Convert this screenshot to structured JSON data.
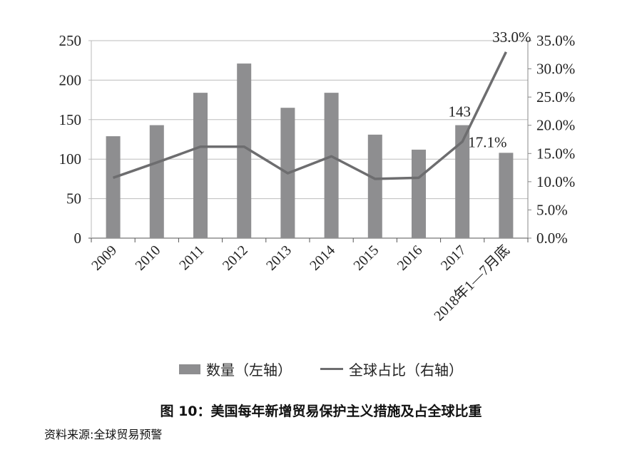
{
  "chart_data": {
    "type": "bar+line",
    "categories": [
      "2009",
      "2010",
      "2011",
      "2012",
      "2013",
      "2014",
      "2015",
      "2016",
      "2017",
      "2018年1—7月底"
    ],
    "series": [
      {
        "name": "数量（左轴）",
        "type": "bar",
        "axis": "left",
        "values": [
          129,
          143,
          184,
          221,
          165,
          184,
          131,
          112,
          143,
          108
        ],
        "color": "#8e8e90"
      },
      {
        "name": "全球占比（右轴）",
        "type": "line",
        "axis": "right",
        "values": [
          10.7,
          13.4,
          16.2,
          16.2,
          11.5,
          14.5,
          10.5,
          10.7,
          17.1,
          33.0
        ],
        "color": "#6d6d6f"
      }
    ],
    "left_axis": {
      "ylim": [
        0,
        250
      ],
      "ticks": [
        "0",
        "50",
        "100",
        "150",
        "200",
        "250"
      ]
    },
    "right_axis": {
      "ylim": [
        0,
        35
      ],
      "ticks": [
        "0.0%",
        "5.0%",
        "10.0%",
        "15.0%",
        "20.0%",
        "25.0%",
        "30.0%",
        "35.0%"
      ]
    },
    "annotations": [
      {
        "text": "143",
        "category": "2017",
        "series": "bar"
      },
      {
        "text": "17.1%",
        "category": "2017",
        "series": "line"
      },
      {
        "text": "33.0%",
        "category": "2018年1—7月底",
        "series": "line"
      }
    ],
    "grid": true,
    "legend_position": "bottom",
    "title": "图 10：美国每年新增贸易保护主义措施及占全球比重",
    "source": "资料来源:全球贸易预警"
  }
}
